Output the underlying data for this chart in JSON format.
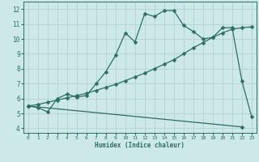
{
  "xlabel": "Humidex (Indice chaleur)",
  "bg_color": "#cce8e8",
  "grid_color": "#b8d4d4",
  "line_color": "#2d6e63",
  "xlim": [
    -0.5,
    23.5
  ],
  "ylim": [
    3.7,
    12.5
  ],
  "xticks": [
    0,
    1,
    2,
    3,
    4,
    5,
    6,
    7,
    8,
    9,
    10,
    11,
    12,
    13,
    14,
    15,
    16,
    17,
    18,
    19,
    20,
    21,
    22,
    23
  ],
  "yticks": [
    4,
    5,
    6,
    7,
    8,
    9,
    10,
    11,
    12
  ],
  "line1_x": [
    0,
    1,
    2,
    3,
    4,
    5,
    6,
    7,
    8,
    9,
    10,
    11,
    12,
    13,
    14,
    15,
    16,
    17,
    18,
    19,
    20,
    21,
    22,
    23
  ],
  "line1_y": [
    5.5,
    5.4,
    5.1,
    6.0,
    6.3,
    6.1,
    6.2,
    7.0,
    7.8,
    8.9,
    10.4,
    9.8,
    11.7,
    11.5,
    11.9,
    11.9,
    10.9,
    10.5,
    10.0,
    10.1,
    10.75,
    10.75,
    7.2,
    4.8
  ],
  "line2_x": [
    0,
    1,
    2,
    3,
    4,
    5,
    6,
    7,
    8,
    9,
    10,
    11,
    12,
    13,
    14,
    15,
    16,
    17,
    18,
    19,
    20,
    21,
    22,
    23
  ],
  "line2_y": [
    5.5,
    5.6,
    5.75,
    5.9,
    6.05,
    6.2,
    6.35,
    6.55,
    6.75,
    6.95,
    7.2,
    7.45,
    7.7,
    8.0,
    8.3,
    8.6,
    9.0,
    9.4,
    9.75,
    10.1,
    10.4,
    10.65,
    10.75,
    10.8
  ],
  "line3_x": [
    0,
    22
  ],
  "line3_y": [
    5.5,
    4.1
  ],
  "dot_size": 2.5
}
